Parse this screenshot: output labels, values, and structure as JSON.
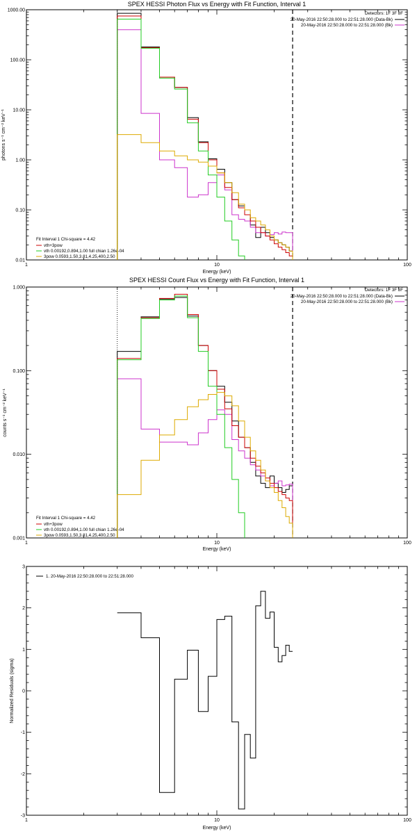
{
  "panels": [
    {
      "title": "SPEX HESSI Photon Flux vs Energy with Fit Function, Interval 1",
      "detectors": "Detectors: 1F 3F 8F",
      "legend_right": [
        {
          "text": "20-May-2016 22:50:28.000 to 22:51:28.000 (Data-Bk)",
          "color": "#000000"
        },
        {
          "text": "20-May-2016 22:50:28.000 to 22:51:28.000 (Bk)",
          "color": "#cc33cc"
        }
      ],
      "fit_info": "Fit Interval 1   Chi-square = 4.42",
      "legend_left": [
        {
          "text": "vth+3pow",
          "color": "#cc0000"
        },
        {
          "text": "vth 0.00192,0.894,1.00  full chian 1.26e-04",
          "color": "#22cc22"
        },
        {
          "text": "3pow 0.0593,1.50,3.81,4.25,400,2.50",
          "color": "#ddaa00"
        }
      ]
    },
    {
      "title": "SPEX HESSI Count Flux vs Energy with Fit Function, Interval 1",
      "detectors": "Detectors: 1F 3F 8F",
      "legend_right": [
        {
          "text": "20-May-2016 22:50:28.000 to 22:51:28.000 (Data-Bk)",
          "color": "#000000"
        },
        {
          "text": "20-May-2016 22:50:28.000 to 22:51:28.000 (Bk)",
          "color": "#cc33cc"
        }
      ],
      "fit_info": "Fit Interval 1   Chi-square = 4.42",
      "legend_left": [
        {
          "text": "vth+3pow",
          "color": "#cc0000"
        },
        {
          "text": "vth 0.00192,0.894,1.00  full chian 1.26e-04",
          "color": "#22cc22"
        },
        {
          "text": "3pow 0.0593,1.50,3.81,4.25,400,2.50",
          "color": "#ddaa00"
        }
      ]
    },
    {
      "title": "",
      "legend_left": [
        {
          "text": "1. 20-May-2016 22:50:28.000 to 22:51:28.000",
          "color": "#000000"
        }
      ]
    }
  ],
  "chart_data": [
    {
      "type": "line",
      "title": "SPEX HESSI Photon Flux vs Energy with Fit Function, Interval 1",
      "xlabel": "Energy (keV)",
      "ylabel": "photons s⁻¹ cm⁻² keV⁻¹",
      "xscale": "log",
      "yscale": "log",
      "xlim": [
        1,
        100
      ],
      "ylim": [
        0.01,
        1000
      ],
      "xticks": [
        {
          "v": 1,
          "label": "1"
        },
        {
          "v": 10,
          "label": "10"
        },
        {
          "v": 100,
          "label": "100"
        }
      ],
      "yticks": [
        {
          "v": 0.01,
          "label": "0.01"
        },
        {
          "v": 0.1,
          "label": "0.10"
        },
        {
          "v": 1,
          "label": "1.00"
        },
        {
          "v": 10,
          "label": "10.00"
        },
        {
          "v": 100,
          "label": "100.00"
        },
        {
          "v": 1000,
          "label": "1000.00"
        }
      ],
      "bin_edges": [
        3,
        4,
        5,
        6,
        7,
        8,
        9,
        10,
        11,
        12,
        13,
        14,
        15,
        16,
        17,
        18,
        19,
        20,
        21,
        22,
        23,
        24,
        25
      ],
      "vlines": [
        {
          "x": 3,
          "style": "dotted"
        },
        {
          "x": 25,
          "style": "dashed"
        }
      ],
      "series": [
        {
          "name": "20-May-2016 22:50:28.000 to 22:51:28.000 (Data-Bk)",
          "color": "#000000",
          "values": [
            850,
            850,
            180,
            180,
            45,
            45,
            28,
            28,
            7,
            7,
            2.3,
            2.3,
            1.05,
            1.05,
            0.65,
            0.65,
            0.35,
            0.35,
            0.16,
            0.16,
            0.12,
            0.12,
            0.08,
            0.08,
            0.05,
            0.05,
            0.028,
            0.028,
            0.045,
            0.045,
            0.035,
            0.035,
            0.028,
            0.028,
            0.025,
            0.025,
            0.022,
            0.022,
            0.02,
            0.02,
            0.018,
            0.018,
            0.015,
            0.015
          ]
        },
        {
          "name": "20-May-2016 22:50:28.000 to 22:51:28.000 (Bk)",
          "color": "#cc33cc",
          "values": [
            400,
            400,
            8.5,
            8.5,
            1.0,
            1.0,
            0.7,
            0.7,
            0.18,
            0.18,
            0.2,
            0.2,
            0.35,
            0.35,
            0.5,
            0.5,
            0.25,
            0.25,
            0.08,
            0.08,
            0.065,
            0.065,
            0.06,
            0.06,
            0.045,
            0.045,
            0.035,
            0.035,
            0.035,
            0.035,
            0.03,
            0.03,
            0.032,
            0.032,
            0.035,
            0.035,
            0.033,
            0.033,
            0.036,
            0.036,
            0.035,
            0.035,
            0.035,
            0.035
          ]
        },
        {
          "name": "vth+3pow",
          "color": "#cc0000",
          "values": [
            750,
            750,
            175,
            175,
            45,
            45,
            28,
            28,
            6.5,
            6.5,
            2.2,
            2.2,
            1.0,
            1.0,
            0.55,
            0.55,
            0.28,
            0.28,
            0.16,
            0.16,
            0.11,
            0.11,
            0.08,
            0.08,
            0.06,
            0.06,
            0.045,
            0.045,
            0.035,
            0.035,
            0.03,
            0.03,
            0.025,
            0.025,
            0.021,
            0.021,
            0.018,
            0.018,
            0.016,
            0.016,
            0.014,
            0.014,
            0.012,
            0.012
          ]
        },
        {
          "name": "vth 0.00192,0.894,1.00  full chian 1.26e-04",
          "color": "#22cc22",
          "values": [
            650,
            650,
            170,
            170,
            43,
            43,
            26,
            26,
            5.5,
            5.5,
            1.5,
            1.5,
            0.5,
            0.5,
            0.18,
            0.18,
            0.06,
            0.06,
            0.025,
            0.025,
            0.012,
            0.012
          ]
        },
        {
          "name": "3pow 0.0593,1.50,3.81,4.25,400,2.50",
          "color": "#ddaa00",
          "values": [
            3.2,
            3.2,
            2.2,
            2.2,
            1.5,
            1.5,
            1.2,
            1.2,
            1.0,
            1.0,
            0.9,
            0.9,
            0.75,
            0.75,
            0.55,
            0.55,
            0.35,
            0.35,
            0.22,
            0.22,
            0.13,
            0.13,
            0.1,
            0.1,
            0.07,
            0.07,
            0.06,
            0.06,
            0.05,
            0.05,
            0.04,
            0.04,
            0.03,
            0.03,
            0.025,
            0.025,
            0.022,
            0.022,
            0.02,
            0.02,
            0.018,
            0.018,
            0.015,
            0.015
          ]
        }
      ]
    },
    {
      "type": "line",
      "title": "SPEX HESSI Count Flux vs Energy with Fit Function, Interval 1",
      "xlabel": "Energy (keV)",
      "ylabel": "counts s⁻¹ cm⁻² keV⁻¹",
      "xscale": "log",
      "yscale": "log",
      "xlim": [
        1,
        100
      ],
      "ylim": [
        0.001,
        1
      ],
      "xticks": [
        {
          "v": 1,
          "label": "1"
        },
        {
          "v": 10,
          "label": "10"
        },
        {
          "v": 100,
          "label": "100"
        }
      ],
      "yticks": [
        {
          "v": 0.001,
          "label": "0.001"
        },
        {
          "v": 0.01,
          "label": "0.010"
        },
        {
          "v": 0.1,
          "label": "0.100"
        },
        {
          "v": 1,
          "label": "1.000"
        }
      ],
      "bin_edges": [
        3,
        4,
        5,
        6,
        7,
        8,
        9,
        10,
        11,
        12,
        13,
        14,
        15,
        16,
        17,
        18,
        19,
        20,
        21,
        22,
        23,
        24,
        25
      ],
      "vlines": [
        {
          "x": 3,
          "style": "dotted"
        },
        {
          "x": 25,
          "style": "dashed"
        }
      ],
      "series": [
        {
          "name": "20-May-2016 22:50:28.000 to 22:51:28.000 (Data-Bk)",
          "color": "#000000",
          "values": [
            0.17,
            0.17,
            0.44,
            0.44,
            0.72,
            0.72,
            0.75,
            0.75,
            0.45,
            0.45,
            0.2,
            0.2,
            0.1,
            0.1,
            0.065,
            0.065,
            0.042,
            0.042,
            0.025,
            0.025,
            0.016,
            0.016,
            0.012,
            0.012,
            0.008,
            0.008,
            0.0055,
            0.0055,
            0.0045,
            0.0045,
            0.004,
            0.004,
            0.0055,
            0.0055,
            0.0045,
            0.0045,
            0.004,
            0.004,
            0.0035,
            0.0035,
            0.0038,
            0.0038,
            0.0042,
            0.0042
          ]
        },
        {
          "name": "20-May-2016 22:50:28.000 to 22:51:28.000 (Bk)",
          "color": "#cc33cc",
          "values": [
            0.08,
            0.08,
            0.02,
            0.02,
            0.014,
            0.014,
            0.014,
            0.014,
            0.013,
            0.013,
            0.018,
            0.018,
            0.026,
            0.026,
            0.034,
            0.034,
            0.03,
            0.03,
            0.015,
            0.015,
            0.011,
            0.011,
            0.009,
            0.009,
            0.0075,
            0.0075,
            0.0065,
            0.0065,
            0.0055,
            0.0055,
            0.0048,
            0.0048,
            0.0042,
            0.0042,
            0.0045,
            0.0045,
            0.0048,
            0.0048,
            0.0042,
            0.0042,
            0.0043,
            0.0043,
            0.0044,
            0.0044
          ]
        },
        {
          "name": "vth+3pow",
          "color": "#cc0000",
          "values": [
            0.14,
            0.14,
            0.43,
            0.43,
            0.73,
            0.73,
            0.82,
            0.82,
            0.47,
            0.47,
            0.2,
            0.2,
            0.1,
            0.1,
            0.06,
            0.06,
            0.035,
            0.035,
            0.022,
            0.022,
            0.016,
            0.016,
            0.012,
            0.012,
            0.009,
            0.009,
            0.0072,
            0.0072,
            0.006,
            0.006,
            0.0052,
            0.0052,
            0.0045,
            0.0045,
            0.004,
            0.004,
            0.0036,
            0.0036,
            0.0033,
            0.0033,
            0.003,
            0.003,
            0.0028,
            0.0028
          ]
        },
        {
          "name": "vth 0.00192,0.894,1.00  full chian 1.26e-04",
          "color": "#22cc22",
          "values": [
            0.135,
            0.135,
            0.42,
            0.42,
            0.7,
            0.7,
            0.78,
            0.78,
            0.43,
            0.43,
            0.17,
            0.17,
            0.065,
            0.065,
            0.03,
            0.03,
            0.012,
            0.012,
            0.005,
            0.005,
            0.002,
            0.002,
            0.0009,
            0.0009
          ]
        },
        {
          "name": "3pow 0.0593,1.50,3.81,4.25,400,2.50",
          "color": "#ddaa00",
          "values": [
            0.0033,
            0.0033,
            0.0085,
            0.0085,
            0.017,
            0.017,
            0.026,
            0.026,
            0.037,
            0.037,
            0.045,
            0.045,
            0.052,
            0.052,
            0.055,
            0.055,
            0.05,
            0.05,
            0.038,
            0.038,
            0.025,
            0.025,
            0.016,
            0.016,
            0.011,
            0.011,
            0.0085,
            0.0085,
            0.0065,
            0.0065,
            0.0048,
            0.0048,
            0.004,
            0.004,
            0.0035,
            0.0035,
            0.0028,
            0.0028,
            0.0023,
            0.0023,
            0.0018,
            0.0018,
            0.0015,
            0.0015
          ]
        }
      ]
    },
    {
      "type": "line",
      "title": "",
      "xlabel": "Energy (keV)",
      "ylabel": "Normalized Residuals (sigma)",
      "xscale": "log",
      "yscale": "linear",
      "xlim": [
        1,
        100
      ],
      "ylim": [
        -3,
        3
      ],
      "xticks": [
        {
          "v": 1,
          "label": "1"
        },
        {
          "v": 10,
          "label": "10"
        },
        {
          "v": 100,
          "label": "100"
        }
      ],
      "yticks": [
        {
          "v": -3,
          "label": "-3"
        },
        {
          "v": -2,
          "label": "-2"
        },
        {
          "v": -1,
          "label": "-1"
        },
        {
          "v": 0,
          "label": "0"
        },
        {
          "v": 1,
          "label": "1"
        },
        {
          "v": 2,
          "label": "2"
        },
        {
          "v": 3,
          "label": "3"
        }
      ],
      "bin_edges": [
        3,
        4,
        5,
        6,
        7,
        8,
        9,
        10,
        11,
        12,
        13,
        14,
        15,
        16,
        17,
        18,
        19,
        20,
        21,
        22,
        23,
        24,
        25
      ],
      "vlines": [],
      "series": [
        {
          "name": "1. 20-May-2016 22:50:28.000 to 22:51:28.000",
          "color": "#000000",
          "values": [
            1.88,
            1.88,
            1.28,
            1.28,
            -2.45,
            -2.45,
            0.28,
            0.28,
            0.98,
            0.98,
            -0.5,
            -0.5,
            0.35,
            0.35,
            1.72,
            1.72,
            1.8,
            1.8,
            -0.75,
            -0.75,
            -2.85,
            -2.85,
            -1.05,
            -1.05,
            -1.62,
            -1.62,
            2.05,
            2.05,
            2.4,
            2.4,
            1.75,
            1.75,
            1.9,
            1.9,
            1.05,
            1.05,
            0.7,
            0.7,
            0.85,
            0.85,
            1.1,
            1.1,
            0.95,
            0.95
          ]
        }
      ]
    }
  ]
}
